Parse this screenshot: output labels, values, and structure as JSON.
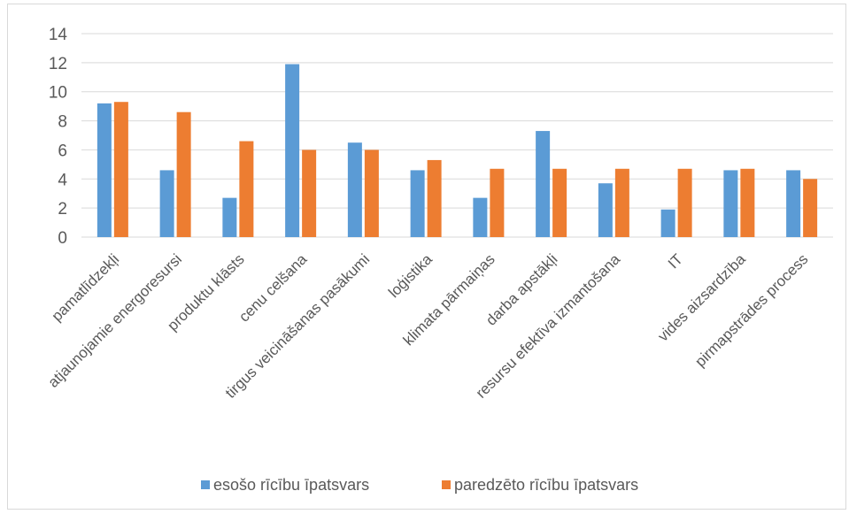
{
  "chart_data": {
    "type": "bar",
    "title": "",
    "xlabel": "",
    "ylabel": "",
    "ylim": [
      0,
      14
    ],
    "yticks": [
      0,
      2,
      4,
      6,
      8,
      10,
      12,
      14
    ],
    "grid": true,
    "legend_position": "bottom",
    "categories": [
      "pamatlīdzekļi",
      "atjaunojamie energoresursi",
      "produktu klāsts",
      "cenu celšana",
      "tirgus veicināšanas pasākumi",
      "loģistika",
      "klimata pārmaiņas",
      "darba apstākļi",
      "resursu efektīva izmantošana",
      "IT",
      "vides aizsardzība",
      "pirmapstrādes process"
    ],
    "series": [
      {
        "name": "esošo rīcību īpatsvars",
        "color": "#5b9bd5",
        "values": [
          9.2,
          4.6,
          2.7,
          11.9,
          6.5,
          4.6,
          2.7,
          7.3,
          3.7,
          1.9,
          4.6,
          4.6
        ]
      },
      {
        "name": "paredzēto rīcību īpatsvars",
        "color": "#ed7d31",
        "values": [
          9.3,
          8.6,
          6.6,
          6.0,
          6.0,
          5.3,
          4.7,
          4.7,
          4.7,
          4.7,
          4.7,
          4.0
        ]
      }
    ]
  }
}
